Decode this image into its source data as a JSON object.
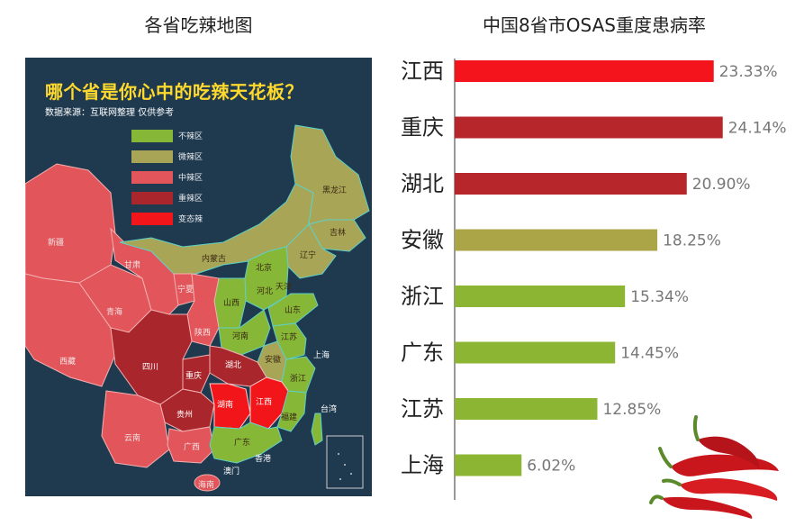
{
  "map_panel": {
    "title": "各省吃辣地图",
    "heading": "哪个省是你心中的吃辣天花板？",
    "source": "数据来源：互联网整理 仅供参考",
    "legend": [
      {
        "label": "不辣区",
        "color": "#86b737"
      },
      {
        "label": "微辣区",
        "color": "#a9a556"
      },
      {
        "label": "中辣区",
        "color": "#e2555a"
      },
      {
        "label": "重辣区",
        "color": "#a8262c"
      },
      {
        "label": "变态辣",
        "color": "#f2161a"
      }
    ],
    "provinces": {
      "xinjiang": "新疆",
      "xizang": "西藏",
      "qinghai": "青海",
      "gansu": "甘肃",
      "neimenggu": "内蒙古",
      "heilongjiang": "黑龙江",
      "jilin": "吉林",
      "liaoning": "辽宁",
      "beijing": "北京",
      "tianjin": "天津",
      "hebei": "河北",
      "shanxi": "山西",
      "shandong": "山东",
      "ningxia": "宁夏",
      "shaanxi": "陕西",
      "henan": "河南",
      "jiangsu": "江苏",
      "shanghai": "上海",
      "anhui": "安徽",
      "hubei": "湖北",
      "sichuan": "四川",
      "chongqing": "重庆",
      "zhejiang": "浙江",
      "hunan": "湖南",
      "jiangxi": "江西",
      "guizhou": "贵州",
      "yunnan": "云南",
      "guangxi": "广西",
      "guangdong": "广东",
      "fujian": "福建",
      "taiwan": "台湾",
      "hongkong": "香港",
      "macau": "澳门",
      "hainan": "海南"
    }
  },
  "chart_title": "中国8省市OSAS重度患病率",
  "chart_data": {
    "type": "bar",
    "orientation": "horizontal",
    "title": "中国8省市OSAS重度患病率",
    "categories": [
      "江西",
      "重庆",
      "湖北",
      "安徽",
      "浙江",
      "广东",
      "江苏",
      "上海"
    ],
    "values": [
      23.33,
      24.14,
      20.9,
      18.25,
      15.34,
      14.45,
      12.85,
      6.02
    ],
    "value_labels": [
      "23.33%",
      "24.14%",
      "20.90%",
      "18.25%",
      "15.34%",
      "14.45%",
      "12.85%",
      "6.02%"
    ],
    "colors": [
      "#f4141c",
      "#b7262b",
      "#b7262b",
      "#aba548",
      "#8db534",
      "#8db534",
      "#8db534",
      "#8db534"
    ],
    "xlim": [
      0,
      30
    ],
    "grid": false,
    "legend": "none"
  },
  "decoration": {
    "pepper_color": "#c8161c",
    "stem_color": "#5a8a2a"
  }
}
